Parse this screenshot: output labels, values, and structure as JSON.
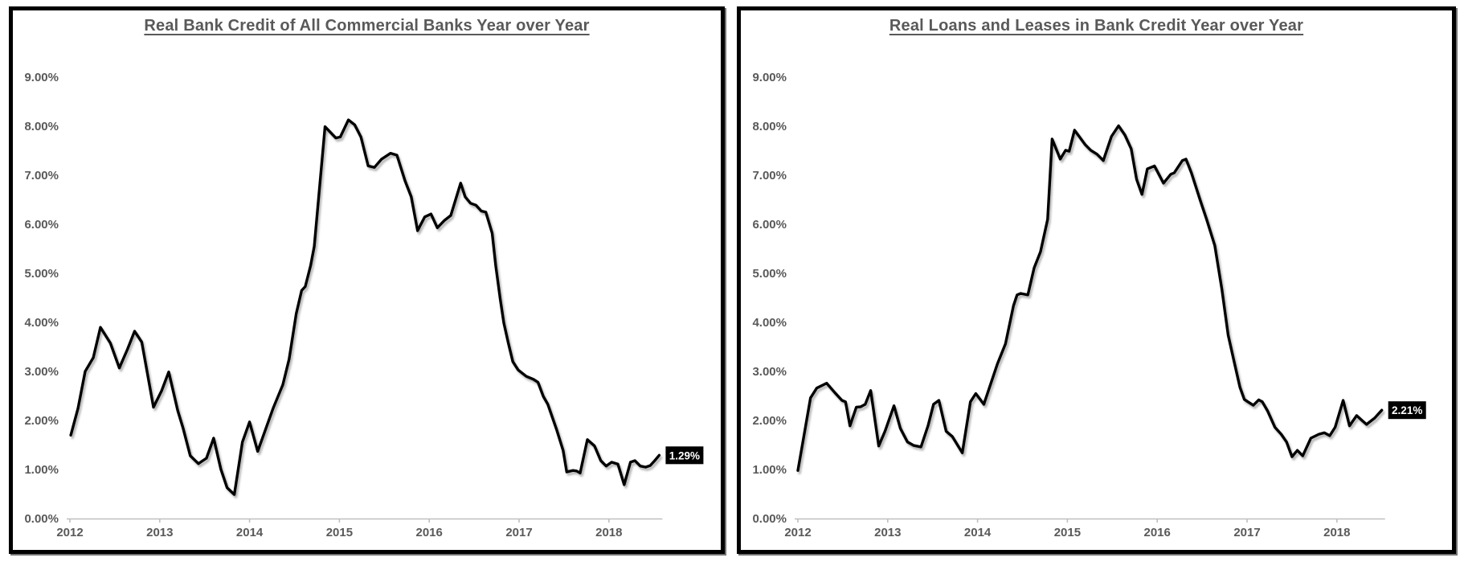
{
  "style": {
    "text_color": "#595959",
    "axis_color": "#bfbfbf",
    "line_color": "#000000",
    "end_label_bg": "#000000",
    "end_label_fg": "#ffffff",
    "panel_border": "#000000",
    "background": "#ffffff"
  },
  "chart_data": [
    {
      "type": "line",
      "title": "Real Bank Credit of All Commercial Banks Year over Year",
      "series_name": "Real Bank Credit YoY",
      "end_label": "1.29%",
      "x_unit": "year",
      "y_unit": "percent",
      "x_range": [
        2012,
        2018.6
      ],
      "ylim": [
        0,
        9.5
      ],
      "grid": "off",
      "legend": "none",
      "y_tick_labels": [
        "0.00%",
        "1.00%",
        "2.00%",
        "3.00%",
        "4.00%",
        "5.00%",
        "6.00%",
        "7.00%",
        "8.00%",
        "9.00%"
      ],
      "x_tick_labels": [
        "2012",
        "2013",
        "2014",
        "2015",
        "2016",
        "2017",
        "2018"
      ],
      "points": [
        [
          2012.01,
          1.7
        ],
        [
          2012.09,
          2.25
        ],
        [
          2012.17,
          3.0
        ],
        [
          2012.26,
          3.28
        ],
        [
          2012.34,
          3.9
        ],
        [
          2012.45,
          3.58
        ],
        [
          2012.55,
          3.07
        ],
        [
          2012.64,
          3.45
        ],
        [
          2012.72,
          3.82
        ],
        [
          2012.8,
          3.6
        ],
        [
          2012.93,
          2.27
        ],
        [
          2013.02,
          2.6
        ],
        [
          2013.1,
          2.99
        ],
        [
          2013.2,
          2.2
        ],
        [
          2013.26,
          1.84
        ],
        [
          2013.34,
          1.28
        ],
        [
          2013.43,
          1.12
        ],
        [
          2013.52,
          1.23
        ],
        [
          2013.6,
          1.64
        ],
        [
          2013.68,
          1.01
        ],
        [
          2013.75,
          0.63
        ],
        [
          2013.83,
          0.49
        ],
        [
          2013.92,
          1.56
        ],
        [
          2014.0,
          1.97
        ],
        [
          2014.09,
          1.37
        ],
        [
          2014.26,
          2.24
        ],
        [
          2014.37,
          2.73
        ],
        [
          2014.44,
          3.25
        ],
        [
          2014.52,
          4.18
        ],
        [
          2014.58,
          4.65
        ],
        [
          2014.62,
          4.73
        ],
        [
          2014.68,
          5.16
        ],
        [
          2014.72,
          5.55
        ],
        [
          2014.84,
          7.99
        ],
        [
          2014.96,
          7.76
        ],
        [
          2015.01,
          7.78
        ],
        [
          2015.1,
          8.13
        ],
        [
          2015.17,
          8.03
        ],
        [
          2015.24,
          7.78
        ],
        [
          2015.32,
          7.19
        ],
        [
          2015.39,
          7.16
        ],
        [
          2015.47,
          7.33
        ],
        [
          2015.57,
          7.45
        ],
        [
          2015.64,
          7.41
        ],
        [
          2015.73,
          6.89
        ],
        [
          2015.8,
          6.56
        ],
        [
          2015.87,
          5.87
        ],
        [
          2015.95,
          6.15
        ],
        [
          2016.02,
          6.21
        ],
        [
          2016.09,
          5.93
        ],
        [
          2016.17,
          6.08
        ],
        [
          2016.24,
          6.18
        ],
        [
          2016.35,
          6.84
        ],
        [
          2016.4,
          6.56
        ],
        [
          2016.46,
          6.43
        ],
        [
          2016.52,
          6.39
        ],
        [
          2016.58,
          6.27
        ],
        [
          2016.63,
          6.25
        ],
        [
          2016.7,
          5.82
        ],
        [
          2016.74,
          5.16
        ],
        [
          2016.79,
          4.48
        ],
        [
          2016.83,
          3.99
        ],
        [
          2016.88,
          3.58
        ],
        [
          2016.93,
          3.2
        ],
        [
          2016.99,
          3.03
        ],
        [
          2017.08,
          2.9
        ],
        [
          2017.16,
          2.84
        ],
        [
          2017.21,
          2.78
        ],
        [
          2017.27,
          2.49
        ],
        [
          2017.32,
          2.33
        ],
        [
          2017.42,
          1.8
        ],
        [
          2017.49,
          1.39
        ],
        [
          2017.53,
          0.95
        ],
        [
          2017.6,
          0.98
        ],
        [
          2017.64,
          0.97
        ],
        [
          2017.68,
          0.93
        ],
        [
          2017.76,
          1.61
        ],
        [
          2017.84,
          1.48
        ],
        [
          2017.91,
          1.18
        ],
        [
          2017.97,
          1.07
        ],
        [
          2018.03,
          1.15
        ],
        [
          2018.1,
          1.11
        ],
        [
          2018.17,
          0.69
        ],
        [
          2018.24,
          1.15
        ],
        [
          2018.29,
          1.18
        ],
        [
          2018.35,
          1.07
        ],
        [
          2018.41,
          1.05
        ],
        [
          2018.46,
          1.08
        ],
        [
          2018.51,
          1.18
        ],
        [
          2018.56,
          1.29
        ]
      ]
    },
    {
      "type": "line",
      "title": "Real Loans and Leases in Bank Credit Year over Year",
      "series_name": "Real Loans and Leases YoY",
      "end_label": "2.21%",
      "x_unit": "year",
      "y_unit": "percent",
      "x_range": [
        2012,
        2018.6
      ],
      "ylim": [
        0,
        9.5
      ],
      "grid": "off",
      "legend": "none",
      "y_tick_labels": [
        "0.00%",
        "1.00%",
        "2.00%",
        "3.00%",
        "4.00%",
        "5.00%",
        "6.00%",
        "7.00%",
        "8.00%",
        "9.00%"
      ],
      "x_tick_labels": [
        "2012",
        "2013",
        "2014",
        "2015",
        "2016",
        "2017",
        "2018"
      ],
      "points": [
        [
          2012.0,
          0.98
        ],
        [
          2012.06,
          1.61
        ],
        [
          2012.14,
          2.46
        ],
        [
          2012.21,
          2.66
        ],
        [
          2012.32,
          2.76
        ],
        [
          2012.41,
          2.57
        ],
        [
          2012.49,
          2.41
        ],
        [
          2012.53,
          2.38
        ],
        [
          2012.58,
          1.89
        ],
        [
          2012.65,
          2.27
        ],
        [
          2012.7,
          2.28
        ],
        [
          2012.75,
          2.33
        ],
        [
          2012.81,
          2.61
        ],
        [
          2012.9,
          1.48
        ],
        [
          2012.97,
          1.78
        ],
        [
          2013.07,
          2.3
        ],
        [
          2013.14,
          1.84
        ],
        [
          2013.22,
          1.56
        ],
        [
          2013.29,
          1.49
        ],
        [
          2013.37,
          1.46
        ],
        [
          2013.45,
          1.9
        ],
        [
          2013.51,
          2.33
        ],
        [
          2013.57,
          2.41
        ],
        [
          2013.65,
          1.78
        ],
        [
          2013.72,
          1.67
        ],
        [
          2013.83,
          1.34
        ],
        [
          2013.92,
          2.38
        ],
        [
          2013.98,
          2.55
        ],
        [
          2014.07,
          2.33
        ],
        [
          2014.22,
          3.15
        ],
        [
          2014.31,
          3.56
        ],
        [
          2014.4,
          4.34
        ],
        [
          2014.44,
          4.56
        ],
        [
          2014.48,
          4.59
        ],
        [
          2014.56,
          4.56
        ],
        [
          2014.63,
          5.11
        ],
        [
          2014.7,
          5.44
        ],
        [
          2014.78,
          6.1
        ],
        [
          2014.83,
          7.74
        ],
        [
          2014.92,
          7.33
        ],
        [
          2014.98,
          7.51
        ],
        [
          2015.02,
          7.49
        ],
        [
          2015.08,
          7.92
        ],
        [
          2015.2,
          7.62
        ],
        [
          2015.26,
          7.51
        ],
        [
          2015.33,
          7.43
        ],
        [
          2015.4,
          7.3
        ],
        [
          2015.49,
          7.79
        ],
        [
          2015.57,
          8.01
        ],
        [
          2015.64,
          7.82
        ],
        [
          2015.71,
          7.54
        ],
        [
          2015.77,
          6.92
        ],
        [
          2015.83,
          6.61
        ],
        [
          2015.89,
          7.13
        ],
        [
          2015.97,
          7.19
        ],
        [
          2016.07,
          6.84
        ],
        [
          2016.15,
          7.02
        ],
        [
          2016.19,
          7.05
        ],
        [
          2016.28,
          7.3
        ],
        [
          2016.32,
          7.33
        ],
        [
          2016.38,
          7.05
        ],
        [
          2016.48,
          6.48
        ],
        [
          2016.55,
          6.1
        ],
        [
          2016.64,
          5.57
        ],
        [
          2016.72,
          4.67
        ],
        [
          2016.79,
          3.74
        ],
        [
          2016.85,
          3.25
        ],
        [
          2016.92,
          2.68
        ],
        [
          2016.97,
          2.43
        ],
        [
          2017.01,
          2.38
        ],
        [
          2017.07,
          2.31
        ],
        [
          2017.13,
          2.42
        ],
        [
          2017.17,
          2.38
        ],
        [
          2017.23,
          2.19
        ],
        [
          2017.31,
          1.86
        ],
        [
          2017.38,
          1.72
        ],
        [
          2017.44,
          1.56
        ],
        [
          2017.5,
          1.26
        ],
        [
          2017.56,
          1.39
        ],
        [
          2017.62,
          1.28
        ],
        [
          2017.71,
          1.64
        ],
        [
          2017.8,
          1.72
        ],
        [
          2017.86,
          1.75
        ],
        [
          2017.92,
          1.69
        ],
        [
          2017.98,
          1.86
        ],
        [
          2018.07,
          2.41
        ],
        [
          2018.14,
          1.89
        ],
        [
          2018.22,
          2.1
        ],
        [
          2018.28,
          2.0
        ],
        [
          2018.33,
          1.92
        ],
        [
          2018.42,
          2.05
        ],
        [
          2018.5,
          2.21
        ]
      ]
    }
  ]
}
